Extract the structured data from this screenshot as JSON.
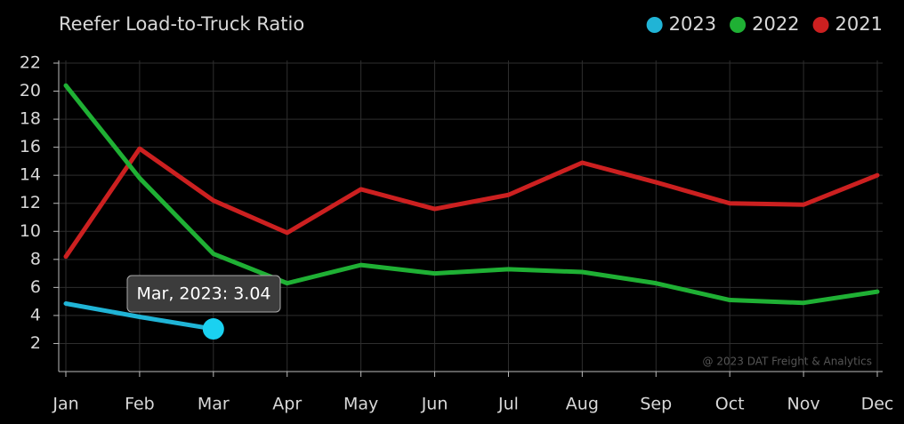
{
  "chart_data": {
    "type": "line",
    "title": "Reefer Load-to-Truck Ratio",
    "categories": [
      "Jan",
      "Feb",
      "Mar",
      "Apr",
      "May",
      "Jun",
      "Jul",
      "Aug",
      "Sep",
      "Oct",
      "Nov",
      "Dec"
    ],
    "series": [
      {
        "name": "2023",
        "color": "#20b4d6",
        "values": [
          4.85,
          3.9,
          3.04,
          null,
          null,
          null,
          null,
          null,
          null,
          null,
          null,
          null
        ]
      },
      {
        "name": "2022",
        "color": "#1fb034",
        "values": [
          20.4,
          13.8,
          8.4,
          6.3,
          7.6,
          7.0,
          7.3,
          7.1,
          6.3,
          5.1,
          4.9,
          5.7
        ]
      },
      {
        "name": "2021",
        "color": "#cc2020",
        "values": [
          8.2,
          15.9,
          12.2,
          9.9,
          13.0,
          11.6,
          12.6,
          14.9,
          13.5,
          12.0,
          11.9,
          14.0
        ]
      }
    ],
    "ylim": [
      0,
      22
    ],
    "yticks": [
      2,
      4,
      6,
      8,
      10,
      12,
      14,
      16,
      18,
      20,
      22
    ],
    "grid": true,
    "legend": "top-right",
    "tooltip": "Mar, 2023: 3.04",
    "watermark": "@ 2023 DAT Freight & Analytics"
  }
}
